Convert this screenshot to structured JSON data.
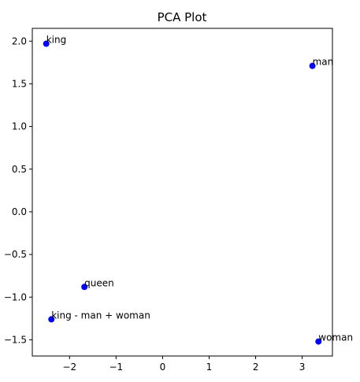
{
  "chart_data": {
    "type": "scatter",
    "title": "PCA Plot",
    "xlabel": "",
    "ylabel": "",
    "xlim": [
      -2.8,
      3.65
    ],
    "ylim": [
      -1.69,
      2.15
    ],
    "xticks": [
      -2,
      -1,
      0,
      1,
      2,
      3
    ],
    "xtick_labels": [
      "−2",
      "−1",
      "0",
      "1",
      "2",
      "3"
    ],
    "yticks": [
      2.0,
      1.5,
      1.0,
      0.5,
      0.0,
      -0.5,
      -1.0,
      -1.5
    ],
    "ytick_labels": [
      "2.0",
      "1.5",
      "1.0",
      "0.5",
      "0.0",
      "−0.5",
      "−1.0",
      "−1.5"
    ],
    "grid": false,
    "marker_color": "#0000ff",
    "points": [
      {
        "label": "king",
        "x": -2.5,
        "y": 1.97
      },
      {
        "label": "man",
        "x": 3.22,
        "y": 1.71
      },
      {
        "label": "queen",
        "x": -1.68,
        "y": -0.88
      },
      {
        "label": "king - man + woman",
        "x": -2.39,
        "y": -1.26
      },
      {
        "label": "woman",
        "x": 3.35,
        "y": -1.52
      }
    ]
  }
}
